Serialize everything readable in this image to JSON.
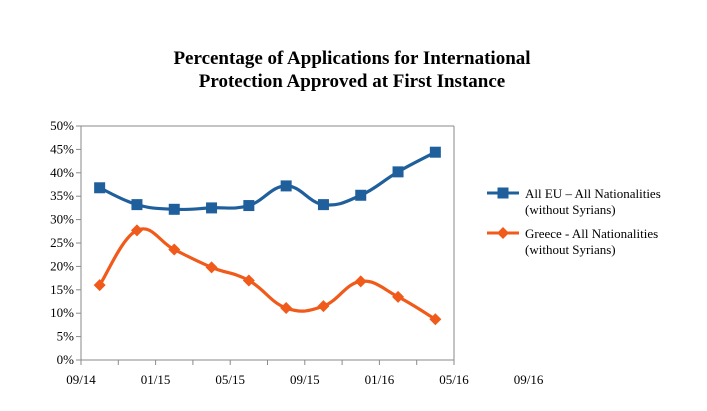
{
  "chart_data": {
    "type": "line",
    "title": [
      "Percentage of Applications for International",
      "Protection Approved at First Instance"
    ],
    "xlabel": "",
    "ylabel": "",
    "ylim": [
      0,
      50
    ],
    "y_ticks": [
      "0%",
      "5%",
      "10%",
      "15%",
      "20%",
      "25%",
      "30%",
      "35%",
      "40%",
      "45%",
      "50%"
    ],
    "x_tick_labels": [
      "09/14",
      "01/15",
      "05/15",
      "09/15",
      "01/16",
      "05/16",
      "09/16"
    ],
    "grid": false,
    "legend_position": "right",
    "series": [
      {
        "name": "All EU – All Nationalities (without Syrians)",
        "legend_lines": [
          "All EU – All Nationalities",
          "(without Syrians)"
        ],
        "color": "#1f5f9c",
        "marker": "square",
        "values": [
          36.8,
          33.2,
          32.2,
          32.5,
          33.0,
          37.2,
          33.2,
          35.2,
          40.2,
          44.4
        ]
      },
      {
        "name": "Greece - All Nationalities (without Syrians)",
        "legend_lines": [
          "Greece - All Nationalities",
          "(without Syrians)"
        ],
        "color": "#f05a1a",
        "marker": "diamond",
        "values": [
          16.0,
          27.7,
          23.6,
          19.8,
          17.0,
          11.1,
          11.5,
          16.8,
          13.5,
          8.7
        ]
      }
    ]
  }
}
